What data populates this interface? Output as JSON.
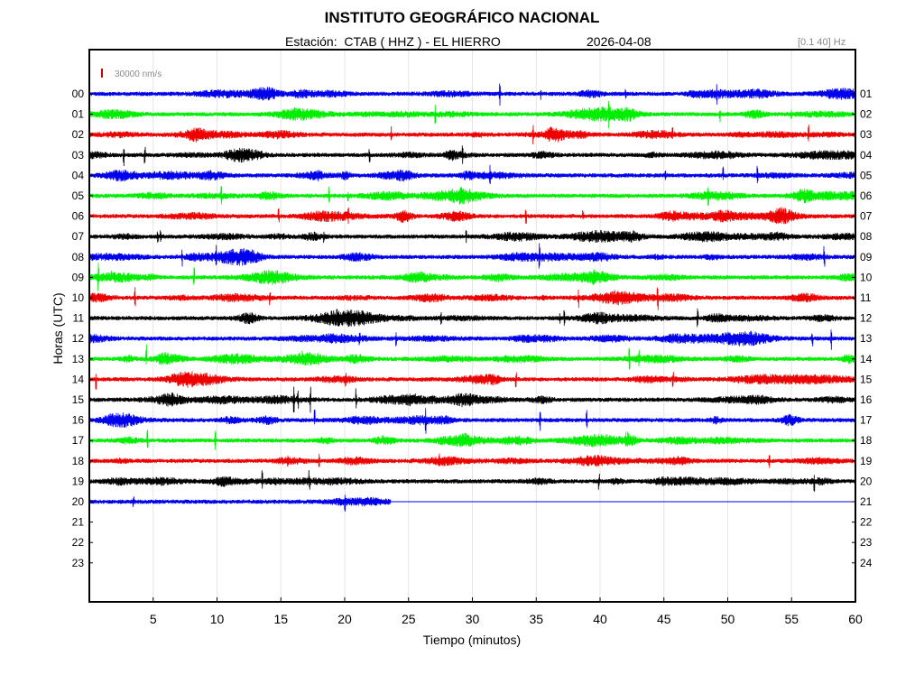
{
  "header": {
    "title": "INSTITUTO GEOGRÁFICO NACIONAL",
    "station_label": "Estación:  CTAB ( HHZ ) - EL HIERRO",
    "date": "2026-04-08",
    "filter": "[0.1 40] Hz"
  },
  "chart_data": {
    "type": "line",
    "title": "INSTITUTO GEOGRÁFICO NACIONAL",
    "xlabel": "Tiempo (minutos)",
    "ylabel": "Horas (UTC)",
    "xlim": [
      0,
      60
    ],
    "x_ticks": [
      "5",
      "10",
      "15",
      "20",
      "25",
      "30",
      "35",
      "40",
      "45",
      "50",
      "55",
      "60"
    ],
    "left_ticks": [
      "00",
      "01",
      "02",
      "03",
      "04",
      "05",
      "06",
      "07",
      "08",
      "09",
      "10",
      "11",
      "12",
      "13",
      "14",
      "15",
      "16",
      "17",
      "18",
      "19",
      "20",
      "21",
      "22",
      "23"
    ],
    "right_ticks": [
      "01",
      "02",
      "03",
      "04",
      "05",
      "06",
      "07",
      "08",
      "09",
      "10",
      "11",
      "12",
      "13",
      "14",
      "15",
      "16",
      "17",
      "18",
      "19",
      "20",
      "21",
      "22",
      "23",
      "24"
    ],
    "scale_bar": {
      "label": "30000 nm/s",
      "color": "#cc0000"
    },
    "grid": true,
    "trace_colors": [
      "#0000ee",
      "#00ee00",
      "#ee0000",
      "#000000"
    ],
    "series": [
      {
        "hour": "00",
        "color": "#0000ee",
        "end_minute": 60
      },
      {
        "hour": "01",
        "color": "#00ee00",
        "end_minute": 60
      },
      {
        "hour": "02",
        "color": "#ee0000",
        "end_minute": 60
      },
      {
        "hour": "03",
        "color": "#000000",
        "end_minute": 60
      },
      {
        "hour": "04",
        "color": "#0000ee",
        "end_minute": 60
      },
      {
        "hour": "05",
        "color": "#00ee00",
        "end_minute": 60
      },
      {
        "hour": "06",
        "color": "#ee0000",
        "end_minute": 60
      },
      {
        "hour": "07",
        "color": "#000000",
        "end_minute": 60
      },
      {
        "hour": "08",
        "color": "#0000ee",
        "end_minute": 60
      },
      {
        "hour": "09",
        "color": "#00ee00",
        "end_minute": 60
      },
      {
        "hour": "10",
        "color": "#ee0000",
        "end_minute": 60
      },
      {
        "hour": "11",
        "color": "#000000",
        "end_minute": 60
      },
      {
        "hour": "12",
        "color": "#0000ee",
        "end_minute": 60
      },
      {
        "hour": "13",
        "color": "#00ee00",
        "end_minute": 60
      },
      {
        "hour": "14",
        "color": "#ee0000",
        "end_minute": 60
      },
      {
        "hour": "15",
        "color": "#000000",
        "end_minute": 60
      },
      {
        "hour": "16",
        "color": "#0000ee",
        "end_minute": 60
      },
      {
        "hour": "17",
        "color": "#00ee00",
        "end_minute": 60
      },
      {
        "hour": "18",
        "color": "#ee0000",
        "end_minute": 60
      },
      {
        "hour": "19",
        "color": "#000000",
        "end_minute": 60
      },
      {
        "hour": "20",
        "color": "#0000ee",
        "end_minute": 23.6,
        "flat_to": 60
      }
    ]
  }
}
